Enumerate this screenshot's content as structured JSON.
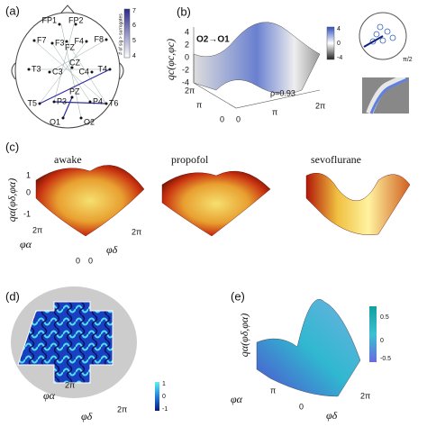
{
  "panel_a": {
    "label": "(a)",
    "electrodes": [
      "FP1",
      "FP2",
      "F7",
      "F3",
      "FZ",
      "F4",
      "F8",
      "T3",
      "C3",
      "CZ",
      "C4",
      "T4",
      "T5",
      "P3",
      "PZ",
      "P4",
      "T6",
      "O1",
      "O2"
    ],
    "colorbar": {
      "label": "# of sig > surrogates",
      "ticks": [
        4,
        5,
        6,
        7
      ]
    }
  },
  "panel_b": {
    "label": "(b)",
    "title": "O2→O1",
    "z_label": "qc(φc,φc)",
    "z_ticks": [
      4,
      2,
      0,
      -2,
      -4
    ],
    "colorbar_ticks": [
      4,
      0,
      -4
    ],
    "axis_ticks": [
      "2π",
      "π",
      "0",
      "0",
      "π",
      "2π"
    ],
    "rho": "ρ=0.93",
    "polar_label": "π/2"
  },
  "panel_c": {
    "label": "(c)",
    "titles": [
      "awake",
      "propofol",
      "sevoflurane"
    ],
    "z_label": "qα(φδ,φα)",
    "z_ticks": [
      1,
      0,
      -1
    ],
    "axis_ticks": [
      "2π",
      "0",
      "0",
      "2π"
    ],
    "x_label": "φα",
    "y_label": "φδ"
  },
  "panel_d": {
    "label": "(d)",
    "axis_ticks": [
      "2π",
      "2π"
    ],
    "x_label": "φα",
    "y_label": "φδ",
    "colorbar_ticks": [
      1,
      0,
      -1
    ]
  },
  "panel_e": {
    "label": "(e)",
    "z_label": "qα(φδ,φα)",
    "colorbar_ticks": [
      0.5,
      0,
      -0.5
    ],
    "axis_ticks": [
      "π",
      "0",
      "2π"
    ],
    "x_label": "φα",
    "y_label": "φδ"
  }
}
